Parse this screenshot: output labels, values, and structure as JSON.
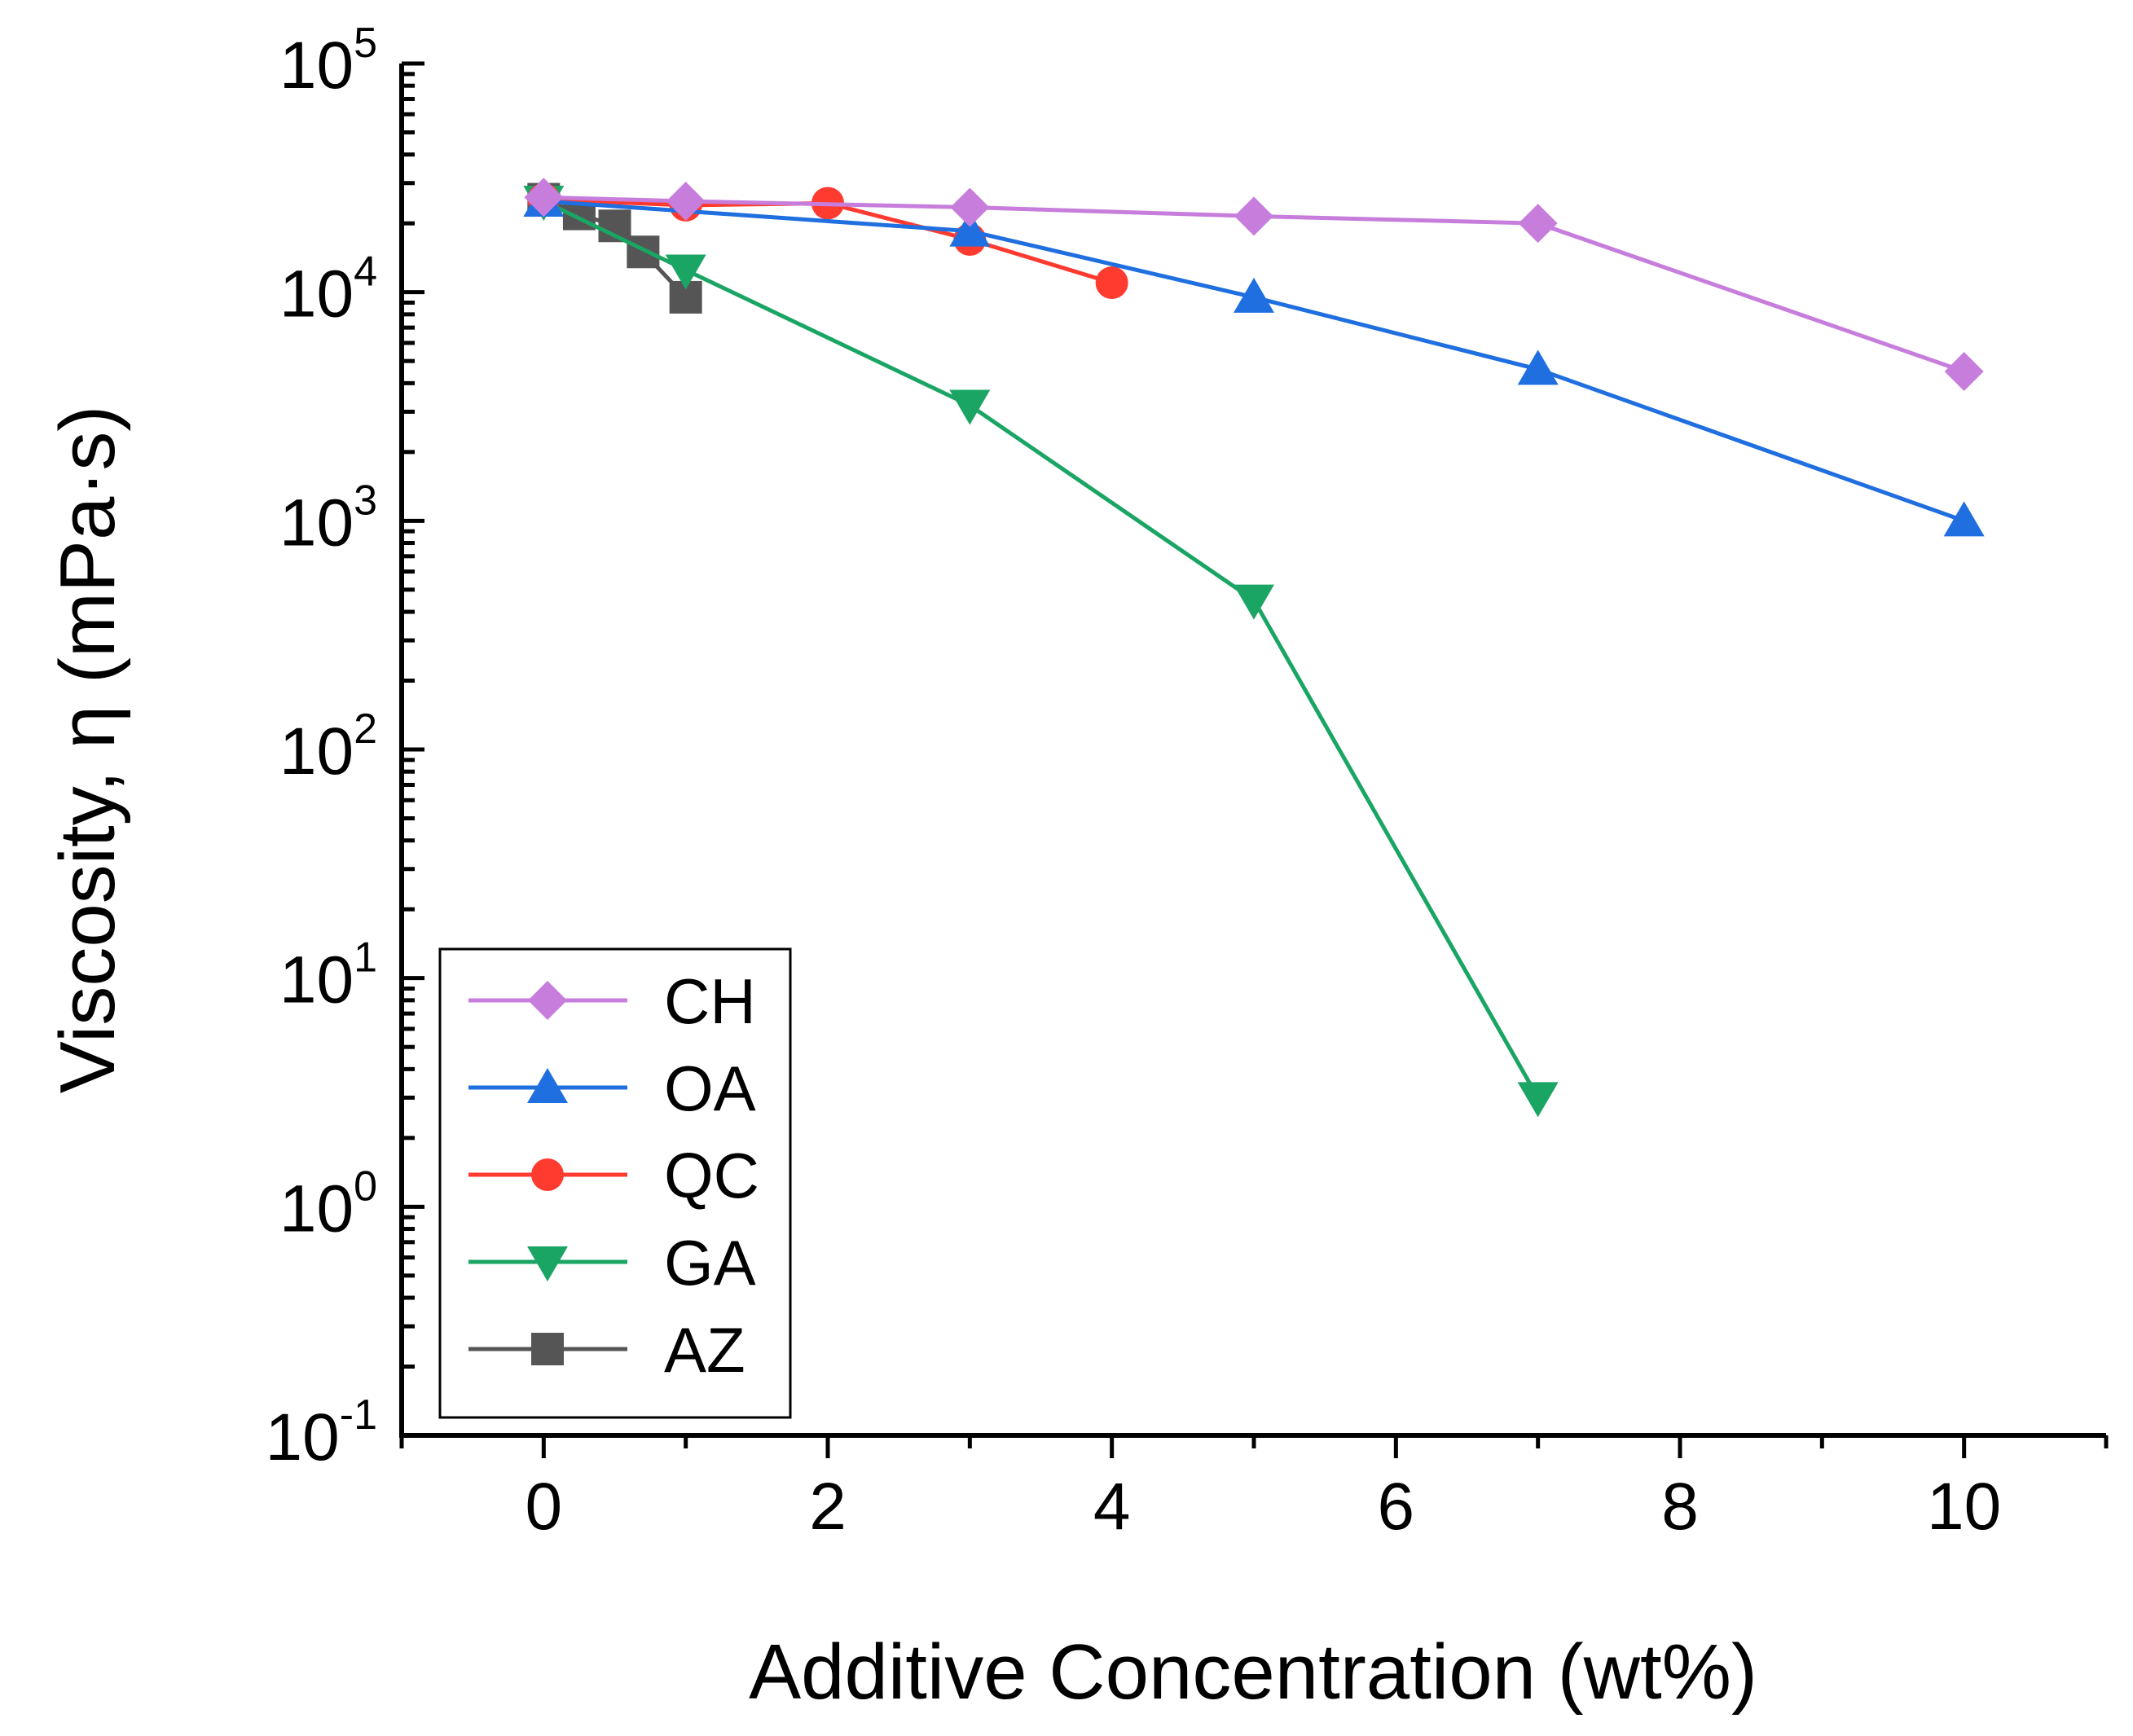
{
  "chart_data": {
    "type": "line",
    "title": "",
    "xlabel": "Additive Concentration (wt%)",
    "ylabel": "Viscosity, η (mPa·s)",
    "yscale": "log",
    "xlim": [
      -1,
      11
    ],
    "ylim": [
      0.1,
      100000
    ],
    "xticks": [
      0,
      2,
      4,
      6,
      8,
      10
    ],
    "yticks": [
      {
        "base": "10",
        "exp": "-1",
        "value": 0.1
      },
      {
        "base": "10",
        "exp": "0",
        "value": 1
      },
      {
        "base": "10",
        "exp": "1",
        "value": 10
      },
      {
        "base": "10",
        "exp": "2",
        "value": 100
      },
      {
        "base": "10",
        "exp": "3",
        "value": 1000
      },
      {
        "base": "10",
        "exp": "4",
        "value": 10000
      },
      {
        "base": "10",
        "exp": "5",
        "value": 100000
      }
    ],
    "legend_position": "bottom-left",
    "series": [
      {
        "name": "CH",
        "color": "#c77ddc",
        "marker": "diamond",
        "x": [
          0,
          1,
          3,
          5,
          7,
          10
        ],
        "y": [
          26000,
          25000,
          23500,
          21500,
          20000,
          4500
        ]
      },
      {
        "name": "OA",
        "color": "#1f6fe0",
        "marker": "triangle-up",
        "x": [
          0,
          3,
          5,
          7,
          10
        ],
        "y": [
          25000,
          18500,
          9500,
          4600,
          1000
        ]
      },
      {
        "name": "QC",
        "color": "#ff3b30",
        "marker": "circle",
        "x": [
          0,
          1,
          2,
          3,
          4
        ],
        "y": [
          25500,
          24000,
          24500,
          17000,
          11000
        ]
      },
      {
        "name": "GA",
        "color": "#1aa564",
        "marker": "triangle-down",
        "x": [
          0,
          1,
          3,
          5,
          7
        ],
        "y": [
          25000,
          12500,
          3200,
          450,
          3
        ]
      },
      {
        "name": "AZ",
        "color": "#555555",
        "marker": "square",
        "x": [
          0,
          0.25,
          0.5,
          0.7,
          1
        ],
        "y": [
          25500,
          22000,
          19500,
          15000,
          9500
        ]
      }
    ]
  }
}
